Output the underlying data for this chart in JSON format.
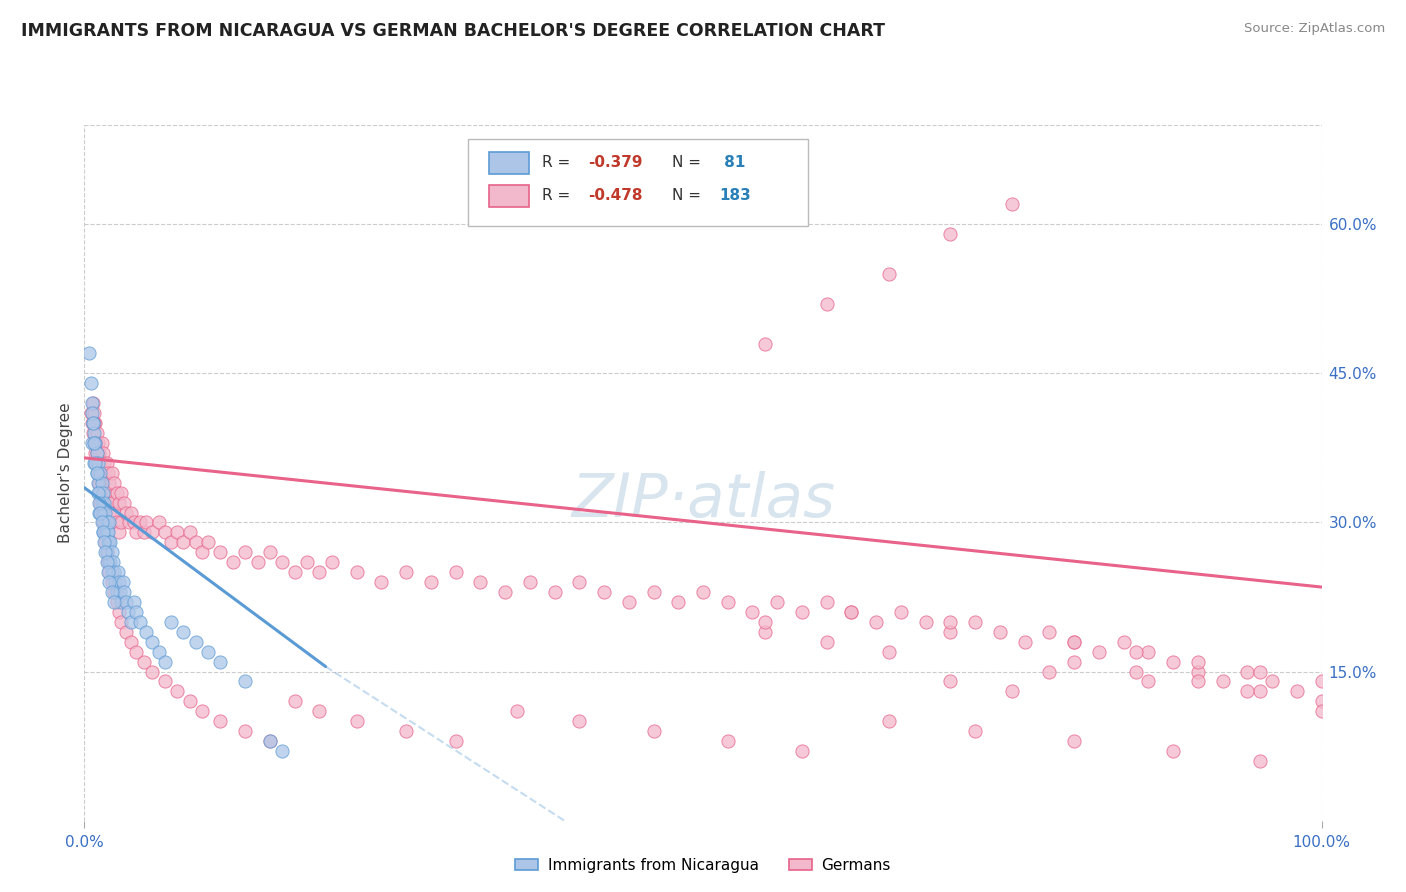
{
  "title": "IMMIGRANTS FROM NICARAGUA VS GERMAN BACHELOR'S DEGREE CORRELATION CHART",
  "source": "Source: ZipAtlas.com",
  "ylabel": "Bachelor's Degree",
  "ytick_labels": [
    "60.0%",
    "45.0%",
    "30.0%",
    "15.0%"
  ],
  "ytick_values": [
    0.6,
    0.45,
    0.3,
    0.15
  ],
  "legend_r1": "R = -0.379",
  "legend_n1": "N =  81",
  "legend_r2": "R = -0.478",
  "legend_n2": "N = 183",
  "legend_bottom": [
    "Immigrants from Nicaragua",
    "Germans"
  ],
  "blue_color": "#5b9bd5",
  "pink_color": "#e8628a",
  "blue_fill": "#adc6e8",
  "pink_fill": "#f2b8cc",
  "blue_trend": [
    0.0,
    0.335,
    0.195,
    0.155
  ],
  "blue_trend_dashed": [
    0.195,
    0.155,
    0.5,
    -0.09
  ],
  "pink_trend": [
    0.0,
    0.365,
    1.0,
    0.235
  ],
  "xmin": 0.0,
  "xmax": 1.0,
  "ymin": 0.0,
  "ymax": 0.7,
  "watermark_text": "ZIP·atlas",
  "r_color": "#c0392b",
  "n_color": "#2980b9",
  "blue_x": [
    0.004,
    0.005,
    0.006,
    0.006,
    0.007,
    0.008,
    0.008,
    0.009,
    0.01,
    0.01,
    0.011,
    0.011,
    0.012,
    0.012,
    0.013,
    0.014,
    0.014,
    0.015,
    0.015,
    0.015,
    0.016,
    0.016,
    0.017,
    0.017,
    0.018,
    0.018,
    0.018,
    0.019,
    0.019,
    0.02,
    0.02,
    0.02,
    0.021,
    0.021,
    0.022,
    0.022,
    0.023,
    0.024,
    0.025,
    0.026,
    0.027,
    0.028,
    0.029,
    0.03,
    0.031,
    0.032,
    0.034,
    0.035,
    0.038,
    0.04,
    0.042,
    0.045,
    0.05,
    0.055,
    0.06,
    0.065,
    0.07,
    0.08,
    0.09,
    0.1,
    0.11,
    0.13,
    0.15,
    0.006,
    0.007,
    0.008,
    0.009,
    0.01,
    0.011,
    0.012,
    0.013,
    0.014,
    0.015,
    0.016,
    0.017,
    0.018,
    0.019,
    0.02,
    0.022,
    0.024,
    0.16
  ],
  "blue_y": [
    0.47,
    0.44,
    0.42,
    0.38,
    0.4,
    0.39,
    0.36,
    0.38,
    0.37,
    0.35,
    0.36,
    0.34,
    0.33,
    0.31,
    0.35,
    0.34,
    0.32,
    0.33,
    0.31,
    0.29,
    0.32,
    0.3,
    0.31,
    0.29,
    0.3,
    0.29,
    0.27,
    0.29,
    0.28,
    0.3,
    0.28,
    0.26,
    0.28,
    0.26,
    0.27,
    0.25,
    0.26,
    0.25,
    0.24,
    0.23,
    0.25,
    0.24,
    0.23,
    0.22,
    0.24,
    0.23,
    0.22,
    0.21,
    0.2,
    0.22,
    0.21,
    0.2,
    0.19,
    0.18,
    0.17,
    0.16,
    0.2,
    0.19,
    0.18,
    0.17,
    0.16,
    0.14,
    0.08,
    0.41,
    0.4,
    0.38,
    0.36,
    0.35,
    0.33,
    0.32,
    0.31,
    0.3,
    0.29,
    0.28,
    0.27,
    0.26,
    0.25,
    0.24,
    0.23,
    0.22,
    0.07
  ],
  "pink_x": [
    0.005,
    0.006,
    0.007,
    0.007,
    0.008,
    0.008,
    0.009,
    0.009,
    0.01,
    0.01,
    0.011,
    0.011,
    0.012,
    0.012,
    0.013,
    0.013,
    0.014,
    0.014,
    0.015,
    0.015,
    0.016,
    0.016,
    0.017,
    0.017,
    0.018,
    0.018,
    0.019,
    0.019,
    0.02,
    0.02,
    0.022,
    0.022,
    0.024,
    0.024,
    0.026,
    0.026,
    0.028,
    0.028,
    0.03,
    0.03,
    0.032,
    0.034,
    0.036,
    0.038,
    0.04,
    0.042,
    0.045,
    0.048,
    0.05,
    0.055,
    0.06,
    0.065,
    0.07,
    0.075,
    0.08,
    0.085,
    0.09,
    0.095,
    0.1,
    0.11,
    0.12,
    0.13,
    0.14,
    0.15,
    0.16,
    0.17,
    0.18,
    0.19,
    0.2,
    0.22,
    0.24,
    0.26,
    0.28,
    0.3,
    0.32,
    0.34,
    0.36,
    0.38,
    0.4,
    0.42,
    0.44,
    0.46,
    0.48,
    0.5,
    0.52,
    0.54,
    0.56,
    0.58,
    0.6,
    0.62,
    0.64,
    0.66,
    0.68,
    0.7,
    0.72,
    0.74,
    0.76,
    0.78,
    0.8,
    0.82,
    0.84,
    0.86,
    0.88,
    0.9,
    0.92,
    0.94,
    0.96,
    0.98,
    1.0,
    0.008,
    0.009,
    0.01,
    0.011,
    0.012,
    0.013,
    0.014,
    0.015,
    0.016,
    0.017,
    0.018,
    0.019,
    0.02,
    0.022,
    0.024,
    0.026,
    0.028,
    0.03,
    0.034,
    0.038,
    0.042,
    0.048,
    0.055,
    0.065,
    0.075,
    0.085,
    0.095,
    0.11,
    0.13,
    0.15,
    0.17,
    0.19,
    0.22,
    0.26,
    0.3,
    0.35,
    0.4,
    0.46,
    0.52,
    0.58,
    0.65,
    0.72,
    0.8,
    0.88,
    0.95,
    0.55,
    0.6,
    0.65,
    0.7,
    0.75,
    0.8,
    0.85,
    0.9,
    0.95,
    1.0,
    0.55,
    0.6,
    0.65,
    0.7,
    0.75,
    0.8,
    0.85,
    0.9,
    0.95,
    1.0,
    0.55,
    0.62,
    0.7,
    0.78,
    0.86,
    0.94
  ],
  "pink_y": [
    0.41,
    0.4,
    0.42,
    0.39,
    0.41,
    0.38,
    0.4,
    0.37,
    0.39,
    0.36,
    0.38,
    0.35,
    0.37,
    0.34,
    0.36,
    0.33,
    0.38,
    0.35,
    0.37,
    0.34,
    0.36,
    0.33,
    0.35,
    0.32,
    0.36,
    0.33,
    0.35,
    0.32,
    0.34,
    0.31,
    0.35,
    0.32,
    0.34,
    0.31,
    0.33,
    0.3,
    0.32,
    0.29,
    0.33,
    0.3,
    0.32,
    0.31,
    0.3,
    0.31,
    0.3,
    0.29,
    0.3,
    0.29,
    0.3,
    0.29,
    0.3,
    0.29,
    0.28,
    0.29,
    0.28,
    0.29,
    0.28,
    0.27,
    0.28,
    0.27,
    0.26,
    0.27,
    0.26,
    0.27,
    0.26,
    0.25,
    0.26,
    0.25,
    0.26,
    0.25,
    0.24,
    0.25,
    0.24,
    0.25,
    0.24,
    0.23,
    0.24,
    0.23,
    0.24,
    0.23,
    0.22,
    0.23,
    0.22,
    0.23,
    0.22,
    0.21,
    0.22,
    0.21,
    0.22,
    0.21,
    0.2,
    0.21,
    0.2,
    0.19,
    0.2,
    0.19,
    0.18,
    0.19,
    0.18,
    0.17,
    0.18,
    0.17,
    0.16,
    0.15,
    0.14,
    0.15,
    0.14,
    0.13,
    0.12,
    0.4,
    0.38,
    0.37,
    0.35,
    0.34,
    0.32,
    0.31,
    0.3,
    0.29,
    0.28,
    0.27,
    0.26,
    0.25,
    0.24,
    0.23,
    0.22,
    0.21,
    0.2,
    0.19,
    0.18,
    0.17,
    0.16,
    0.15,
    0.14,
    0.13,
    0.12,
    0.11,
    0.1,
    0.09,
    0.08,
    0.12,
    0.11,
    0.1,
    0.09,
    0.08,
    0.11,
    0.1,
    0.09,
    0.08,
    0.07,
    0.1,
    0.09,
    0.08,
    0.07,
    0.06,
    0.48,
    0.52,
    0.55,
    0.59,
    0.62,
    0.16,
    0.15,
    0.14,
    0.13,
    0.11,
    0.19,
    0.18,
    0.17,
    0.14,
    0.13,
    0.18,
    0.17,
    0.16,
    0.15,
    0.14,
    0.2,
    0.21,
    0.2,
    0.15,
    0.14,
    0.13
  ]
}
